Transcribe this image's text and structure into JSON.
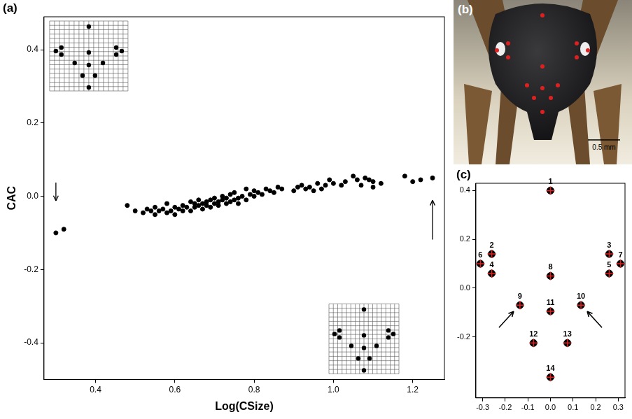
{
  "chart_data": [
    {
      "panel": "(a)",
      "type": "scatter",
      "x_label": "Log(CSize)",
      "y_label": "CAC",
      "x": [
        0.3,
        0.32,
        0.48,
        0.5,
        0.52,
        0.53,
        0.54,
        0.55,
        0.55,
        0.56,
        0.57,
        0.58,
        0.58,
        0.59,
        0.6,
        0.6,
        0.61,
        0.62,
        0.62,
        0.63,
        0.64,
        0.64,
        0.65,
        0.65,
        0.66,
        0.66,
        0.67,
        0.67,
        0.68,
        0.68,
        0.69,
        0.69,
        0.7,
        0.7,
        0.71,
        0.71,
        0.72,
        0.72,
        0.73,
        0.73,
        0.74,
        0.74,
        0.75,
        0.75,
        0.76,
        0.76,
        0.77,
        0.78,
        0.78,
        0.79,
        0.8,
        0.8,
        0.81,
        0.82,
        0.83,
        0.84,
        0.85,
        0.86,
        0.87,
        0.9,
        0.91,
        0.92,
        0.93,
        0.94,
        0.95,
        0.96,
        0.97,
        0.98,
        0.99,
        1.0,
        1.02,
        1.03,
        1.05,
        1.06,
        1.07,
        1.08,
        1.09,
        1.1,
        1.1,
        1.12,
        1.18,
        1.2,
        1.22,
        1.25
      ],
      "values": [
        -0.1,
        -0.09,
        -0.025,
        -0.04,
        -0.045,
        -0.035,
        -0.04,
        -0.05,
        -0.03,
        -0.04,
        -0.035,
        -0.02,
        -0.045,
        -0.04,
        -0.03,
        -0.05,
        -0.035,
        -0.04,
        -0.025,
        -0.03,
        -0.015,
        -0.04,
        -0.03,
        -0.02,
        -0.025,
        -0.01,
        -0.02,
        -0.035,
        -0.015,
        -0.025,
        -0.01,
        -0.03,
        -0.02,
        -0.005,
        -0.015,
        -0.025,
        -0.01,
        0.0,
        -0.02,
        -0.005,
        -0.015,
        0.005,
        -0.01,
        0.01,
        -0.005,
        -0.02,
        0.0,
        0.02,
        -0.01,
        0.005,
        0.0,
        0.015,
        0.01,
        0.005,
        0.02,
        0.015,
        0.01,
        0.025,
        0.02,
        0.015,
        0.025,
        0.03,
        0.02,
        0.025,
        0.015,
        0.035,
        0.02,
        0.03,
        0.045,
        0.035,
        0.03,
        0.04,
        0.055,
        0.045,
        0.03,
        0.05,
        0.045,
        0.04,
        0.025,
        0.035,
        0.055,
        0.04,
        0.045,
        0.05
      ],
      "color": "#000000",
      "marker": "circle",
      "xlim": [
        0.27,
        1.28
      ],
      "xticks": [
        0.4,
        0.6,
        0.8,
        {
          "value": 1,
          "label": "1.0"
        },
        1.2
      ],
      "ylim": [
        -0.5,
        0.49
      ],
      "yticks": [
        -0.4,
        -0.2,
        {
          "value": 0,
          "label": "0.0"
        },
        0.2,
        0.4
      ],
      "grid": false
    },
    {
      "panel": "(c)",
      "type": "scatter",
      "x": [
        0.0,
        -0.26,
        0.26,
        -0.26,
        0.26,
        -0.31,
        0.31,
        0.0,
        -0.135,
        0.135,
        0.0,
        -0.075,
        0.075,
        0.0
      ],
      "values": [
        0.4,
        0.14,
        0.14,
        0.06,
        0.06,
        0.1,
        0.1,
        0.05,
        -0.07,
        -0.07,
        -0.095,
        -0.225,
        -0.225,
        -0.365
      ],
      "point_labels": [
        "1",
        "2",
        "3",
        "4",
        "5",
        "6",
        "7",
        "8",
        "9",
        "10",
        "11",
        "12",
        "13",
        "14"
      ],
      "color": "#000000",
      "marker": "circle",
      "xlim": [
        -0.33,
        0.33
      ],
      "xticks": [
        -0.3,
        -0.2,
        -0.1,
        {
          "value": 0,
          "label": "0.0"
        },
        0.1,
        0.2,
        0.3
      ],
      "ylim": [
        -0.45,
        0.43
      ],
      "yticks": [
        -0.2,
        {
          "value": 0,
          "label": "0.0"
        },
        0.2,
        0.4
      ],
      "grid": false
    }
  ],
  "photo": {
    "panel": "(b)",
    "scale_bar_label": "0.5 mm"
  }
}
